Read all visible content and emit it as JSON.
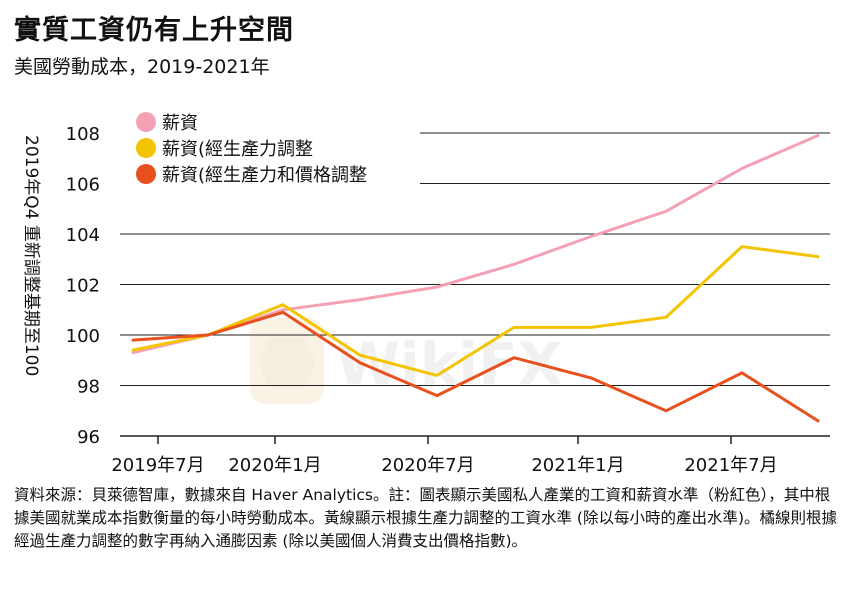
{
  "title": "實質工資仍有上升空間",
  "subtitle": "美國勞動成本，2019-2021年",
  "footnote": "資料來源：貝萊德智庫，數據來自 Haver Analytics。註：圖表顯示美國私人產業的工資和薪資水準（粉紅色），其中根據美國就業成本指數衡量的每小時勞動成本。黃線顯示根據生產力調整的工資水準 (除以每小時的產出水準)。橘線則根據經過生產力調整的數字再納入通膨因素 (除以美國個人消費支出價格指數)。",
  "watermark": "WikiFX",
  "chart_data": {
    "type": "line",
    "title": "實質工資仍有上升空間",
    "subtitle": "美國勞動成本，2019-2021年",
    "ylabel": "2019年Q4 重新調整基期至100",
    "xlabel": "",
    "ylim": [
      96,
      108
    ],
    "yticks": [
      96,
      98,
      100,
      102,
      104,
      106,
      108
    ],
    "x": [
      "2019年Q3",
      "2019年Q4",
      "2020年Q1",
      "2020年Q2",
      "2020年Q3",
      "2020年Q4",
      "2021年Q1",
      "2021年Q2",
      "2021年Q3",
      "2021年Q4"
    ],
    "xtick_labels": [
      "2019年7月",
      "2020年1月",
      "2020年7月",
      "2021年1月",
      "2021年7月"
    ],
    "grid": "horizontal",
    "legend_position": "top-left",
    "series": [
      {
        "name": "薪資",
        "color": "#f4a1b5",
        "values": [
          99.3,
          100.0,
          101.0,
          101.4,
          101.9,
          102.8,
          103.9,
          104.9,
          106.6,
          107.9
        ]
      },
      {
        "name": "薪資(經生產力調整",
        "color": "#f5c400",
        "values": [
          99.4,
          100.0,
          101.2,
          99.2,
          98.4,
          100.3,
          100.3,
          100.7,
          103.5,
          103.1
        ]
      },
      {
        "name": "薪資(經生產力和價格調整",
        "color": "#e8501e",
        "values": [
          99.8,
          100.0,
          100.9,
          98.9,
          97.6,
          99.1,
          98.3,
          97.0,
          98.5,
          96.6
        ]
      }
    ]
  }
}
